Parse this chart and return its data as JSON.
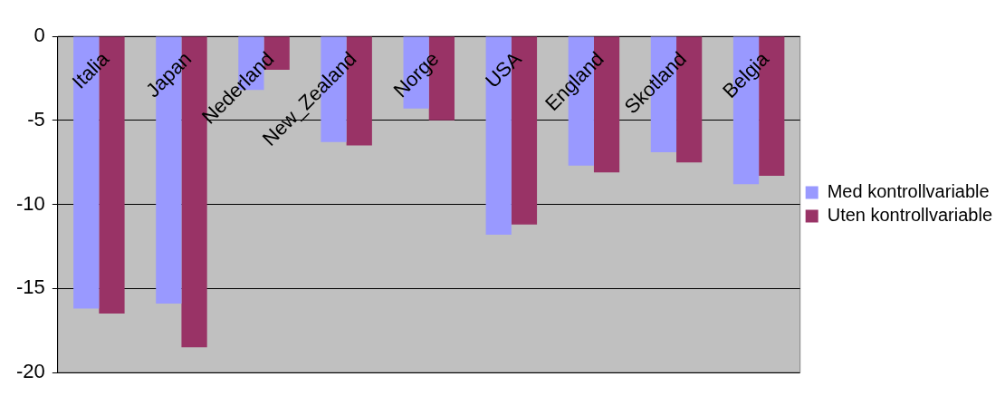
{
  "chart_data": {
    "type": "bar",
    "categories": [
      "Italia",
      "Japan",
      "Nederland",
      "New_Zealand",
      "Norge",
      "USA",
      "England",
      "Skotland",
      "Belgia"
    ],
    "series": [
      {
        "name": "Med kontrollvariable",
        "color": "#9999ff",
        "values": [
          -16.2,
          -15.9,
          -3.2,
          -6.3,
          -4.3,
          -11.8,
          -7.7,
          -6.9,
          -8.8
        ]
      },
      {
        "name": "Uten kontrollvariable",
        "color": "#993366",
        "values": [
          -16.5,
          -18.5,
          -2.0,
          -6.5,
          -5.0,
          -11.2,
          -8.1,
          -7.5,
          -8.3
        ]
      }
    ],
    "ylim": [
      -20,
      0
    ],
    "yticks": [
      -20,
      -15,
      -10,
      -5,
      0
    ],
    "grid": "y",
    "legend": "right"
  }
}
